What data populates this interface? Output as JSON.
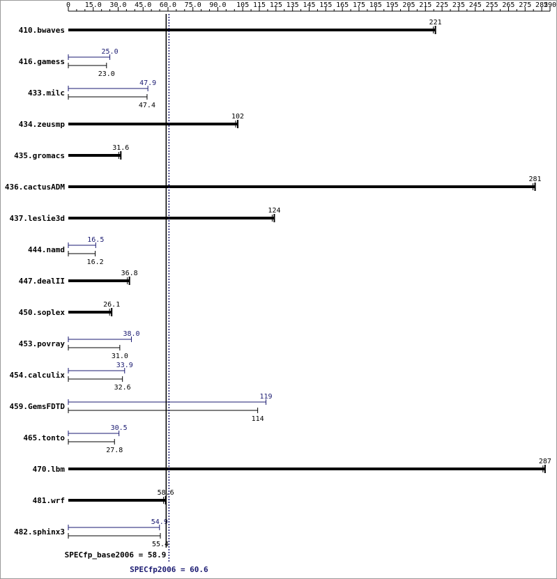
{
  "chart_data": {
    "type": "bar",
    "orientation": "horizontal",
    "xlim": [
      0,
      290
    ],
    "x_ticks": [
      "0",
      "15.0",
      "30.0",
      "45.0",
      "60.0",
      "75.0",
      "90.0",
      "105",
      "115",
      "125",
      "135",
      "145",
      "155",
      "165",
      "175",
      "185",
      "195",
      "205",
      "215",
      "225",
      "235",
      "245",
      "255",
      "265",
      "275",
      "285",
      "290"
    ],
    "x_tick_values": [
      0,
      15,
      30,
      45,
      60,
      75,
      90,
      105,
      115,
      125,
      135,
      145,
      155,
      165,
      175,
      185,
      195,
      205,
      215,
      225,
      235,
      245,
      255,
      265,
      275,
      285,
      290
    ],
    "benchmarks": [
      {
        "name": "410.bwaves",
        "base": 221,
        "base_label": "221",
        "peak": null,
        "peak_label": ""
      },
      {
        "name": "416.gamess",
        "base": 23.0,
        "base_label": "23.0",
        "peak": 25.0,
        "peak_label": "25.0"
      },
      {
        "name": "433.milc",
        "base": 47.4,
        "base_label": "47.4",
        "peak": 47.9,
        "peak_label": "47.9"
      },
      {
        "name": "434.zeusmp",
        "base": 102,
        "base_label": "102",
        "peak": null,
        "peak_label": ""
      },
      {
        "name": "435.gromacs",
        "base": 31.6,
        "base_label": "31.6",
        "peak": null,
        "peak_label": ""
      },
      {
        "name": "436.cactusADM",
        "base": 281,
        "base_label": "281",
        "peak": null,
        "peak_label": ""
      },
      {
        "name": "437.leslie3d",
        "base": 124,
        "base_label": "124",
        "peak": null,
        "peak_label": ""
      },
      {
        "name": "444.namd",
        "base": 16.2,
        "base_label": "16.2",
        "peak": 16.5,
        "peak_label": "16.5"
      },
      {
        "name": "447.dealII",
        "base": 36.8,
        "base_label": "36.8",
        "peak": null,
        "peak_label": ""
      },
      {
        "name": "450.soplex",
        "base": 26.1,
        "base_label": "26.1",
        "peak": null,
        "peak_label": ""
      },
      {
        "name": "453.povray",
        "base": 31.0,
        "base_label": "31.0",
        "peak": 38.0,
        "peak_label": "38.0"
      },
      {
        "name": "454.calculix",
        "base": 32.6,
        "base_label": "32.6",
        "peak": 33.9,
        "peak_label": "33.9"
      },
      {
        "name": "459.GemsFDTD",
        "base": 114,
        "base_label": "114",
        "peak": 119,
        "peak_label": "119"
      },
      {
        "name": "465.tonto",
        "base": 27.8,
        "base_label": "27.8",
        "peak": 30.5,
        "peak_label": "30.5"
      },
      {
        "name": "470.lbm",
        "base": 287,
        "base_label": "287",
        "peak": null,
        "peak_label": ""
      },
      {
        "name": "481.wrf",
        "base": 58.6,
        "base_label": "58.6",
        "peak": null,
        "peak_label": ""
      },
      {
        "name": "482.sphinx3",
        "base": 55.4,
        "base_label": "55.4",
        "peak": 54.9,
        "peak_label": "54.9"
      }
    ],
    "base_mean": 58.9,
    "base_mean_text": "SPECfp_base2006 = 58.9",
    "peak_mean": 60.6,
    "peak_mean_text": "SPECfp2006 = 60.6",
    "colors": {
      "base": "#000000",
      "peak": "#191970"
    },
    "grid": false,
    "legend": "none"
  }
}
